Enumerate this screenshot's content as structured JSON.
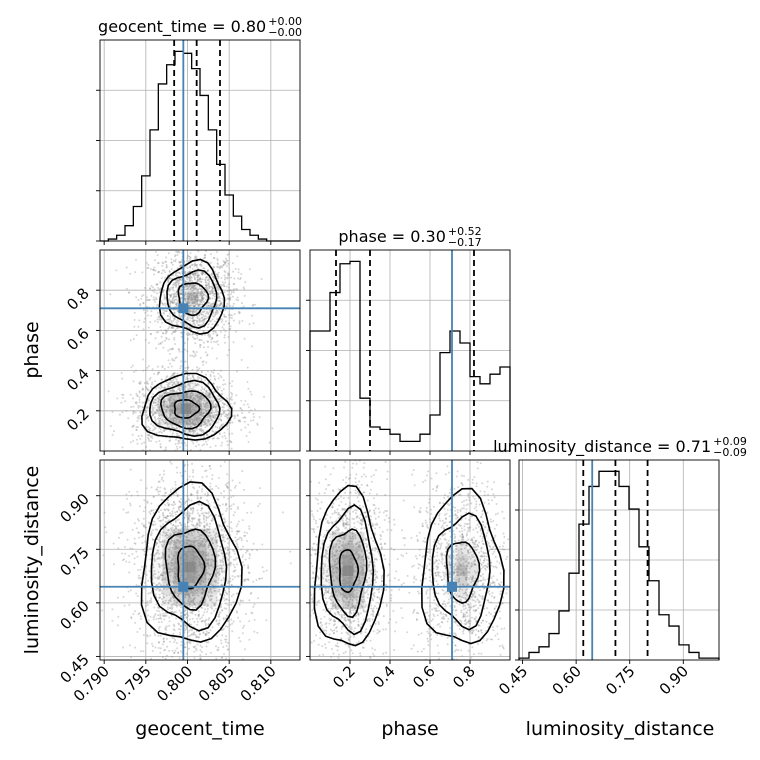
{
  "chart_data": {
    "type": "corner",
    "parameters": [
      "geocent_time",
      "phase",
      "luminosity_distance"
    ],
    "truths": {
      "geocent_time": 0.7995,
      "phase": 0.71,
      "luminosity_distance": 0.645
    },
    "titles": [
      {
        "param": "geocent_time",
        "text": "geocent_time = 0.80",
        "sup": "+0.00",
        "sub": "−0.00"
      },
      {
        "param": "phase",
        "text": "phase = 0.30",
        "sup": "+0.52",
        "sub": "−0.17"
      },
      {
        "param": "luminosity_distance",
        "text": "luminosity_distance = 0.71",
        "sup": "+0.09",
        "sub": "−0.09"
      }
    ],
    "axis_ranges": {
      "geocent_time": [
        0.7895,
        0.8135
      ],
      "phase": [
        0.0,
        1.0
      ],
      "luminosity_distance": [
        0.44,
        1.0
      ]
    },
    "ticks": {
      "geocent_time": [
        0.79,
        0.795,
        0.8,
        0.805,
        0.81
      ],
      "phase_x": [
        0.2,
        0.4,
        0.6,
        0.8
      ],
      "phase_y": [
        0.2,
        0.4,
        0.6,
        0.8
      ],
      "luminosity_distance": [
        0.45,
        0.6,
        0.75,
        0.9
      ]
    },
    "tick_labels": {
      "geocent_time": [
        "0.790",
        "0.795",
        "0.800",
        "0.805",
        "0.810"
      ],
      "phase_x": [
        "0.2",
        "0.4",
        "0.6",
        "0.8"
      ],
      "phase_y": [
        "0.2",
        "0.4",
        "0.6",
        "0.8"
      ],
      "luminosity_distance": [
        "0.45",
        "0.60",
        "0.75",
        "0.90"
      ]
    },
    "axis_labels": {
      "x": [
        "geocent_time",
        "phase",
        "luminosity_distance"
      ],
      "y": [
        "phase",
        "luminosity_distance"
      ]
    },
    "quantiles": {
      "geocent_time": [
        0.7984,
        0.8011,
        0.8039
      ],
      "phase": [
        0.13,
        0.3,
        0.82
      ],
      "luminosity_distance": [
        0.62,
        0.71,
        0.8
      ]
    },
    "histograms": {
      "geocent_time": {
        "range": [
          0.7895,
          0.8135
        ],
        "counts": [
          0,
          1,
          3,
          8,
          18,
          34,
          58,
          82,
          92,
          99,
          98,
          90,
          76,
          58,
          40,
          24,
          13,
          6,
          3,
          1,
          0,
          0,
          0,
          0
        ]
      },
      "phase": {
        "range": [
          0.0,
          1.0
        ],
        "counts": [
          100,
          100,
          132,
          156,
          158,
          44,
          20,
          18,
          14,
          8,
          8,
          14,
          30,
          82,
          100,
          90,
          62,
          56,
          64,
          70
        ]
      },
      "luminosity_distance": {
        "range": [
          0.44,
          1.0
        ],
        "counts": [
          1,
          4,
          7,
          14,
          26,
          46,
          72,
          92,
          100,
          100,
          92,
          80,
          60,
          42,
          24,
          18,
          8,
          4,
          1,
          1
        ]
      }
    },
    "grid": true,
    "truth_color": "#4682b4"
  }
}
